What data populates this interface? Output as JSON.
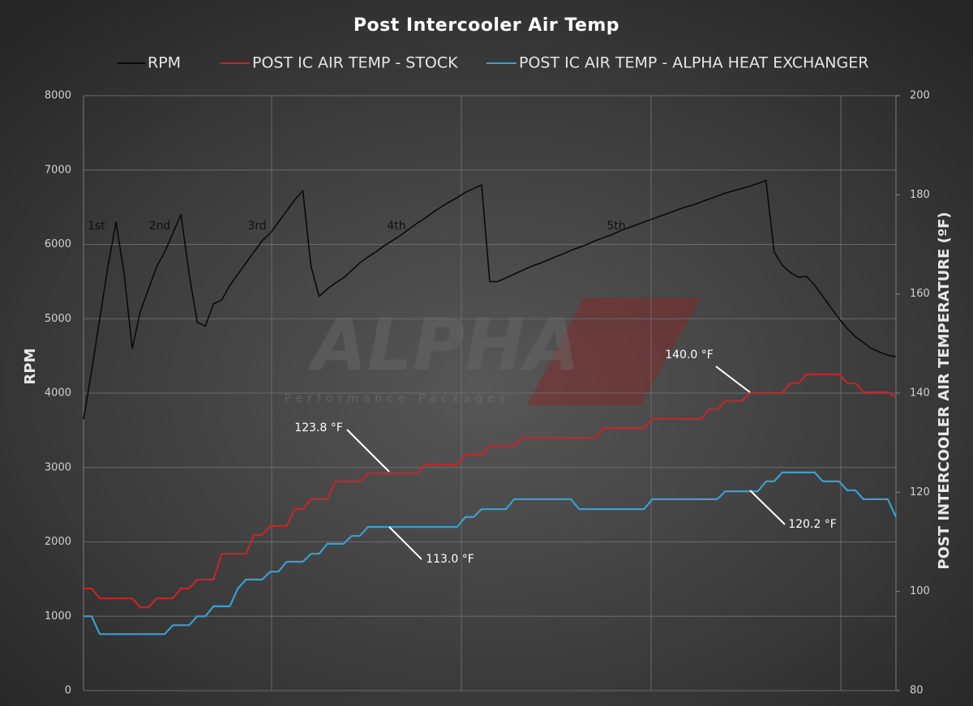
{
  "chart_data": {
    "type": "line",
    "title": "Post Intercooler Air Temp",
    "y_label": "RPM",
    "y2_label": "POST INTERCOOLER AIR TEMPERATURE (ºF)",
    "categories": [
      null,
      null,
      null,
      null,
      null,
      null,
      null,
      null,
      null,
      null,
      null,
      null,
      null,
      null,
      null,
      null,
      null,
      null,
      null,
      null,
      null,
      null,
      null,
      null,
      null,
      null,
      null,
      null,
      null,
      null,
      null,
      null,
      null,
      null,
      null,
      null,
      null,
      null,
      null,
      null,
      null,
      null,
      null,
      null,
      null,
      null,
      null,
      null,
      null,
      null,
      null,
      null,
      null,
      null,
      null,
      null,
      null,
      null,
      null,
      null,
      null,
      null,
      null,
      null,
      null,
      null,
      null,
      null,
      null,
      null,
      null,
      null,
      null,
      null,
      null,
      null,
      null,
      null,
      null,
      null,
      null,
      null,
      null,
      null,
      null,
      null,
      null,
      null,
      null,
      null,
      null,
      null,
      null,
      null,
      null,
      null,
      null,
      null,
      null,
      null,
      null
    ],
    "series": [
      {
        "name": "RPM",
        "color": "#0a0a0a",
        "values": [
          3650,
          4300,
          5000,
          5700,
          6300,
          5600,
          4600,
          5100,
          5400,
          5700,
          5900,
          6150,
          6400,
          5600,
          4950,
          4900,
          5200,
          5250,
          5450,
          5600,
          5750,
          5900,
          6050,
          6150,
          6300,
          6450,
          6600,
          6720,
          5700,
          5300,
          5400,
          5480,
          5550,
          5650,
          5750,
          5830,
          5900,
          5980,
          6050,
          6120,
          6200,
          6280,
          6350,
          6430,
          6500,
          6570,
          6630,
          6700,
          6750,
          6800,
          5500,
          5500,
          5550,
          5600,
          5650,
          5700,
          5740,
          5780,
          5830,
          5870,
          5920,
          5960,
          6000,
          6050,
          6090,
          6130,
          6180,
          6220,
          6260,
          6300,
          6340,
          6380,
          6420,
          6460,
          6500,
          6530,
          6570,
          6610,
          6650,
          6690,
          6720,
          6750,
          6780,
          6820,
          6860,
          5900,
          5720,
          5620,
          5560,
          5570,
          5450,
          5300,
          5150,
          5000,
          4870,
          4760,
          4680,
          4600,
          4550,
          4510,
          4490
        ]
      },
      {
        "name": "POST IC AIR TEMP - STOCK",
        "color": "#c3262b",
        "axis": "y2",
        "values": [
          100.6,
          100.6,
          98.6,
          98.6,
          98.6,
          98.6,
          98.6,
          96.8,
          96.8,
          98.6,
          98.6,
          98.6,
          100.6,
          100.6,
          102.4,
          102.4,
          102.4,
          107.6,
          107.6,
          107.6,
          107.6,
          111.4,
          111.4,
          113.2,
          113.2,
          113.2,
          116.6,
          116.6,
          118.6,
          118.6,
          118.6,
          122.2,
          122.2,
          122.2,
          122.2,
          123.8,
          123.8,
          123.8,
          123.8,
          123.8,
          123.8,
          123.8,
          125.6,
          125.6,
          125.6,
          125.6,
          125.6,
          127.6,
          127.6,
          127.6,
          129.4,
          129.4,
          129.4,
          129.4,
          131,
          131,
          131,
          131,
          131,
          131,
          131,
          131,
          131,
          131,
          133,
          133,
          133,
          133,
          133,
          133,
          134.8,
          134.8,
          134.8,
          134.8,
          134.8,
          134.8,
          134.8,
          136.7,
          136.7,
          138.4,
          138.4,
          138.4,
          140,
          140,
          140,
          140,
          140,
          142,
          142,
          143.8,
          143.8,
          143.8,
          143.8,
          143.8,
          142,
          142,
          140.2,
          140.2,
          140.2,
          140.2,
          139.2
        ]
      },
      {
        "name": "POST IC AIR TEMP - ALPHA HEAT EXCHANGER",
        "color": "#3a9fd0",
        "axis": "y2",
        "values": [
          95,
          95,
          91.4,
          91.4,
          91.4,
          91.4,
          91.4,
          91.4,
          91.4,
          91.4,
          91.4,
          93.2,
          93.2,
          93.2,
          95,
          95,
          97,
          97,
          97,
          100.6,
          102.4,
          102.4,
          102.4,
          104,
          104,
          106,
          106,
          106,
          107.6,
          107.6,
          109.6,
          109.6,
          109.6,
          111.2,
          111.2,
          113,
          113,
          113,
          113,
          113,
          113,
          113,
          113,
          113,
          113,
          113,
          113,
          115,
          115,
          116.6,
          116.6,
          116.6,
          116.6,
          118.6,
          118.6,
          118.6,
          118.6,
          118.6,
          118.6,
          118.6,
          118.6,
          116.6,
          116.6,
          116.6,
          116.6,
          116.6,
          116.6,
          116.6,
          116.6,
          116.6,
          118.6,
          118.6,
          118.6,
          118.6,
          118.6,
          118.6,
          118.6,
          118.6,
          118.6,
          120.2,
          120.2,
          120.2,
          120.2,
          120.2,
          122.2,
          122.2,
          124,
          124,
          124,
          124,
          124,
          122.2,
          122.2,
          122.2,
          120.4,
          120.4,
          118.6,
          118.6,
          118.6,
          118.6,
          115
        ]
      }
    ],
    "ylim": [
      0,
      8000
    ],
    "yticks": [
      0,
      1000,
      2000,
      3000,
      4000,
      5000,
      6000,
      7000,
      8000
    ],
    "y2lim": [
      80,
      200
    ],
    "y2ticks": [
      80,
      100,
      120,
      140,
      160,
      180,
      200
    ],
    "grid": true,
    "legend": "top",
    "gear_labels": [
      "1st",
      "2nd",
      "3rd",
      "4th",
      "5th"
    ],
    "annotations": [
      "140.0 °F",
      "123.8 °F",
      "113.0 °F",
      "120.2 °F"
    ],
    "watermark": {
      "logo": "ALPHA",
      "tagline": "Performance Packages"
    }
  }
}
